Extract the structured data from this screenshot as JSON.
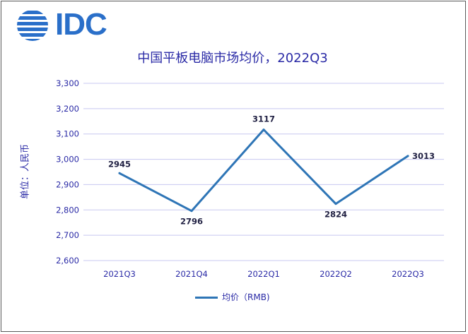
{
  "brand": {
    "name": "IDC",
    "color": "#2a6fc9"
  },
  "chart_data": {
    "type": "line",
    "title": "中国平板电脑市场均价，2022Q3",
    "ylabel": "单位：人民币",
    "xlabel": "",
    "categories": [
      "2021Q3",
      "2021Q4",
      "2022Q1",
      "2022Q2",
      "2022Q3"
    ],
    "series": [
      {
        "name": "均价（RMB)",
        "values": [
          2945,
          2796,
          3117,
          2824,
          3013
        ],
        "color": "#2e75b6"
      }
    ],
    "data_labels": [
      "2945",
      "2796",
      "3117",
      "2824",
      "3013"
    ],
    "yticks": [
      "2,600",
      "2,700",
      "2,800",
      "2,900",
      "3,000",
      "3,100",
      "3,200",
      "3,300"
    ],
    "ytick_values": [
      2600,
      2700,
      2800,
      2900,
      3000,
      3100,
      3200,
      3300
    ],
    "ylim": [
      2600,
      3300
    ],
    "grid": true,
    "legend_position": "bottom",
    "text_color": "#2a2aa6",
    "grid_color": "#c8c8f0"
  }
}
